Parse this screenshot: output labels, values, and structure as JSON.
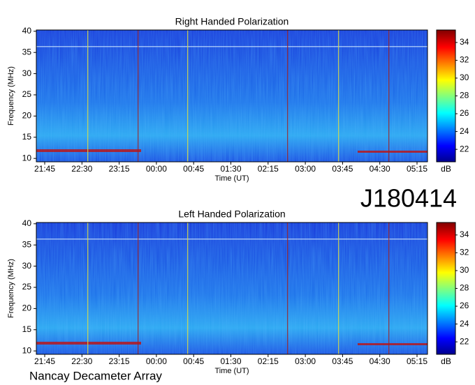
{
  "chart_data": [
    {
      "type": "spectrogram",
      "title": "Right Handed Polarization",
      "xlabel": "Time (UT)",
      "ylabel": "Frequency (MHz)",
      "xticks": [
        "21:45",
        "22:30",
        "23:15",
        "00:00",
        "00:45",
        "01:30",
        "02:15",
        "03:00",
        "03:45",
        "04:30",
        "05:15"
      ],
      "ylim": [
        9.2,
        40.3
      ],
      "yticks": [
        10,
        15,
        20,
        25,
        30,
        35,
        40
      ],
      "colorbar": {
        "label": "dB",
        "lim": [
          20.6,
          35.4
        ],
        "ticks": [
          22,
          24,
          26,
          28,
          30,
          32,
          34
        ]
      }
    },
    {
      "type": "spectrogram",
      "title": "Left Handed Polarization",
      "xlabel": "Time (UT)",
      "ylabel": "Frequency (MHz)",
      "xticks": [
        "21:45",
        "22:30",
        "23:15",
        "00:00",
        "00:45",
        "01:30",
        "02:15",
        "03:00",
        "03:45",
        "04:30",
        "05:15"
      ],
      "ylim": [
        9.2,
        40.3
      ],
      "yticks": [
        10,
        15,
        20,
        25,
        30,
        35,
        40
      ],
      "colorbar": {
        "label": "dB",
        "lim": [
          20.6,
          35.4
        ],
        "ticks": [
          22,
          24,
          26,
          28,
          30,
          32,
          34
        ]
      }
    }
  ],
  "header": {
    "id": "J180414"
  },
  "footer": {
    "text": "Nancay Decameter Array"
  }
}
